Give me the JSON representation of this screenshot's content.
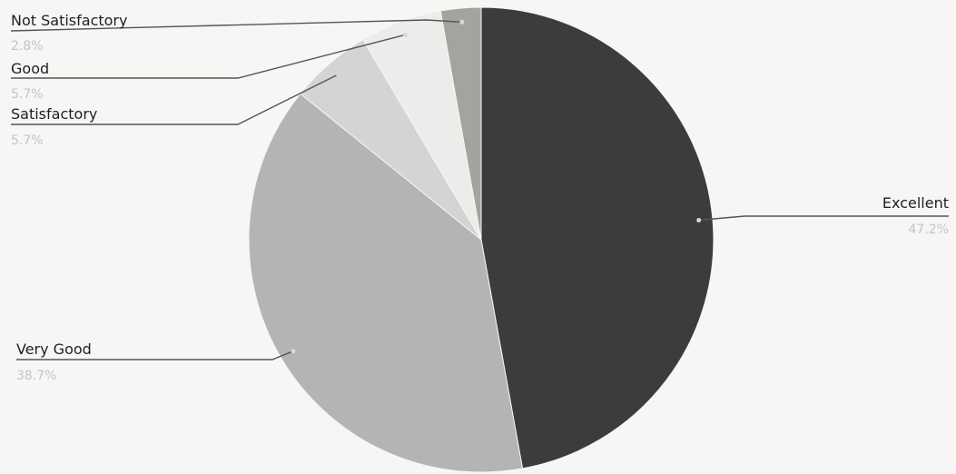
{
  "chart_data": {
    "type": "pie",
    "slices": [
      {
        "label": "Excellent",
        "percent_label": "47.2%",
        "value": 47.2,
        "color": "#3b3d3c"
      },
      {
        "label": "Very Good",
        "percent_label": "38.7%",
        "value": 38.7,
        "color": "#b4b4b2"
      },
      {
        "label": "Satisfactory",
        "percent_label": "5.7%",
        "value": 5.7,
        "color": "#d3d5d2"
      },
      {
        "label": "Good",
        "percent_label": "5.7%",
        "value": 5.7,
        "color": "#ececea"
      },
      {
        "label": "Not Satisfactory",
        "percent_label": "2.8%",
        "value": 2.8,
        "color": "#a3a4a0"
      }
    ],
    "start_angle_deg": 0,
    "direction": "clockwise",
    "legend": "none",
    "data_labels": "outside-with-leader-lines"
  }
}
